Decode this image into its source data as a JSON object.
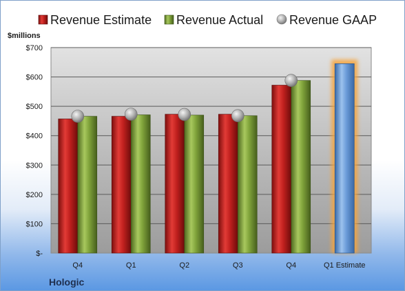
{
  "chart_data": {
    "type": "bar",
    "ylabel": "$millions",
    "ylim": [
      0,
      700
    ],
    "yticks": [
      0,
      100,
      200,
      300,
      400,
      500,
      600,
      700
    ],
    "ytick_labels": [
      "$-",
      "$100",
      "$200",
      "$300",
      "$400",
      "$500",
      "$600",
      "$700"
    ],
    "categories": [
      "Q4",
      "Q1",
      "Q2",
      "Q3",
      "Q4",
      "Q1 Estimate"
    ],
    "series": [
      {
        "name": "Revenue Estimate",
        "color": "#c0201e",
        "values": [
          457,
          466,
          473,
          473,
          572,
          645
        ]
      },
      {
        "name": "Revenue Actual",
        "color": "#7fa23a",
        "values": [
          466,
          471,
          470,
          468,
          588,
          null
        ]
      },
      {
        "name": "Revenue GAAP",
        "color": "#9a9a9a",
        "values": [
          466,
          473,
          472,
          468,
          588,
          null
        ]
      }
    ],
    "grid": true,
    "legend": "top"
  },
  "company": "Hologic"
}
